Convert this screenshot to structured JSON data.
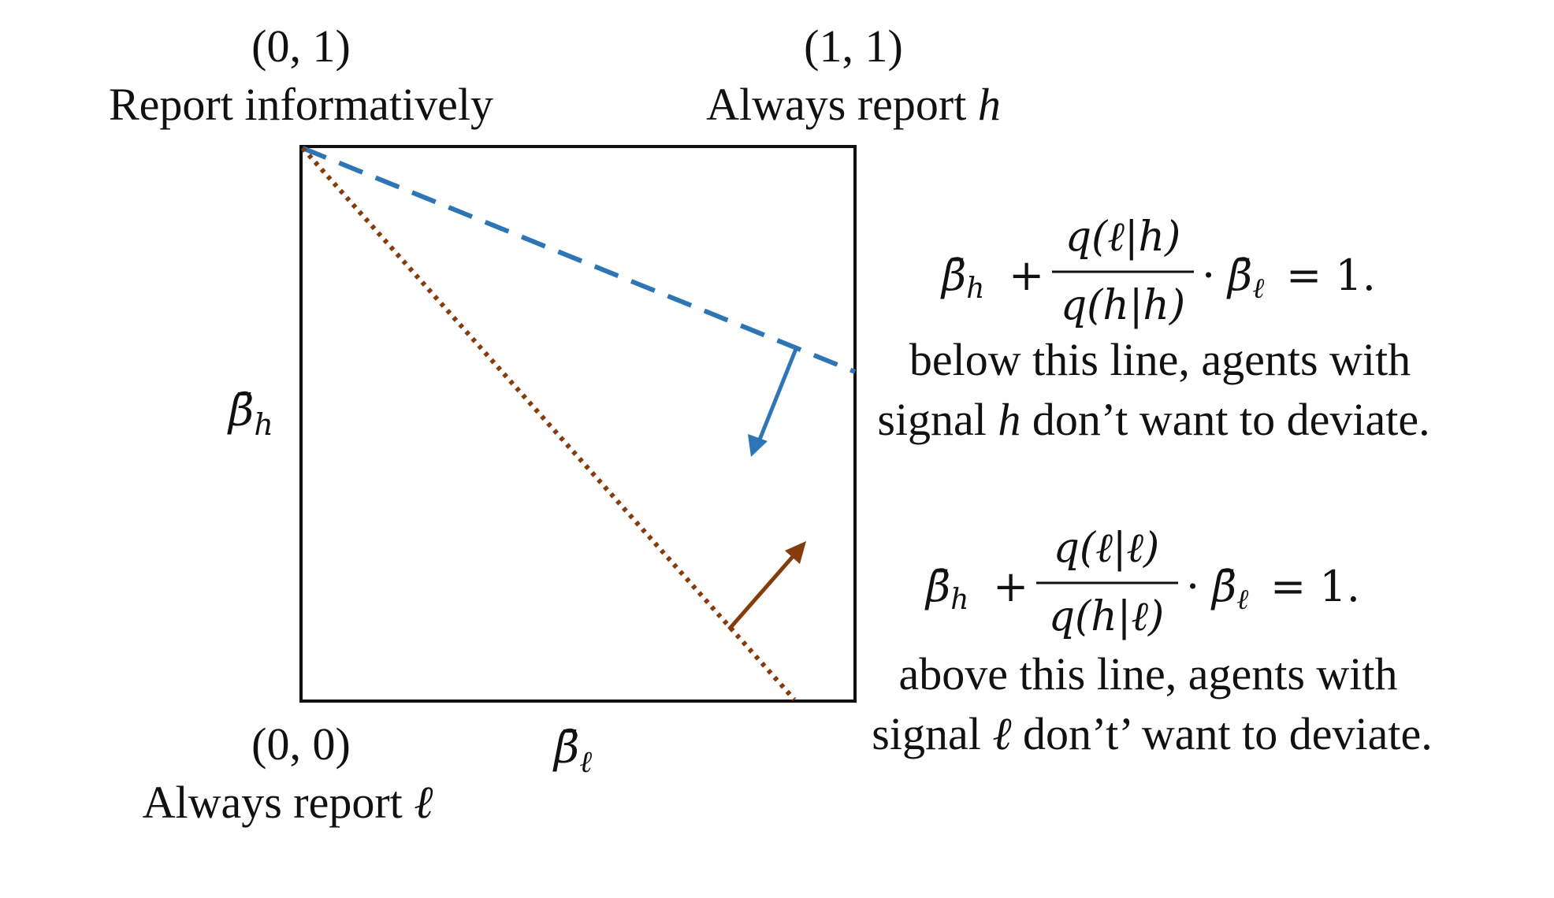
{
  "corners": {
    "top_left": {
      "coord": "(0, 1)",
      "caption": "Report informatively"
    },
    "top_right": {
      "coord": "(1, 1)",
      "caption_prefix": "Always report ",
      "caption_var": "h"
    },
    "bottom_left": {
      "coord": "(0, 0)",
      "caption_prefix": "Always report ",
      "caption_var": "ℓ"
    }
  },
  "axes": {
    "y_label": "β̄",
    "y_sub": "h",
    "x_label": "β̄",
    "x_sub": "ℓ"
  },
  "equations": {
    "h": {
      "beta_h": "β̄",
      "beta_h_sub": "h",
      "plus": "+",
      "numerator": "q(ℓ|h)",
      "denominator": "q(h|h)",
      "dot": "·",
      "beta_l": "β̄",
      "beta_l_sub": "ℓ",
      "rhs": "= 1.",
      "caption_line1": "below this line, agents with",
      "caption_line2_prefix": "signal ",
      "caption_line2_var": "h",
      "caption_line2_suffix": " don’t want to deviate."
    },
    "l": {
      "beta_h": "β̄",
      "beta_h_sub": "h",
      "plus": "+",
      "numerator": "q(ℓ|ℓ)",
      "denominator": "q(h|ℓ)",
      "dot": "·",
      "beta_l": "β̄",
      "beta_l_sub": "ℓ",
      "rhs": "= 1.",
      "caption_line1": "above this line, agents with",
      "caption_line2_prefix": "signal ",
      "caption_line2_var": "ℓ",
      "caption_line2_suffix": " don’t’ want to deviate."
    }
  },
  "colors": {
    "h_line": "#2e75b6",
    "l_line": "#843c0c",
    "box": "#111111"
  }
}
